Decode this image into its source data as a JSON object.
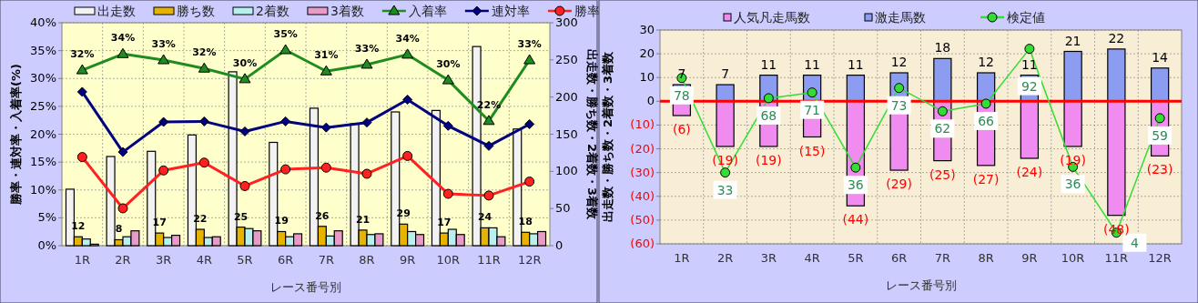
{
  "chart_data": [
    {
      "type": "bar",
      "xlabel": "レース番号別",
      "ylabel": "勝率・連対率・入着率(%)",
      "y2label": "出走数・勝ち数・2着数・3着数",
      "categories": [
        "1R",
        "2R",
        "3R",
        "4R",
        "5R",
        "6R",
        "7R",
        "8R",
        "9R",
        "10R",
        "11R",
        "12R"
      ],
      "ylim": [
        0,
        40
      ],
      "yticks": [
        {
          "value": 0,
          "label": "0%"
        },
        {
          "value": 5,
          "label": "5%"
        },
        {
          "value": 10,
          "label": "10%"
        },
        {
          "value": 15,
          "label": "15%"
        },
        {
          "value": 20,
          "label": "20%"
        },
        {
          "value": 25,
          "label": "25%"
        },
        {
          "value": 30,
          "label": "30%"
        },
        {
          "value": 35,
          "label": "35%"
        },
        {
          "value": 40,
          "label": "40%"
        }
      ],
      "y2lim": [
        0,
        300
      ],
      "y2ticks": [
        0,
        50,
        100,
        150,
        200,
        250,
        300
      ],
      "grid": true,
      "legend": "top",
      "series": [
        {
          "name": "出走数",
          "color": "#f2f2f2",
          "axis": "y2",
          "values": [
            76,
            120,
            127,
            149,
            234,
            139,
            185,
            164,
            180,
            182,
            268,
            157
          ]
        },
        {
          "name": "勝ち数",
          "color": "#e6b400",
          "axis": "y2",
          "values": [
            12,
            8,
            17,
            22,
            25,
            19,
            26,
            21,
            29,
            17,
            24,
            18
          ],
          "value_labels": [
            "12",
            "8",
            "17",
            "22",
            "25",
            "19",
            "26",
            "21",
            "29",
            "17",
            "24",
            "18"
          ]
        },
        {
          "name": "2着数",
          "color": "#b8f0f0",
          "axis": "y2",
          "values": [
            9,
            12,
            11,
            11,
            23,
            12,
            13,
            15,
            19,
            22,
            24,
            16
          ]
        },
        {
          "name": "3着数",
          "color": "#e89ac8",
          "axis": "y2",
          "values": [
            2,
            20,
            14,
            12,
            20,
            16,
            20,
            16,
            15,
            15,
            12,
            19
          ]
        },
        {
          "name": "入着率",
          "type": "line",
          "color": "#1e8c1e",
          "marker": "triangle",
          "values": [
            31.5,
            34.4,
            33.3,
            31.8,
            29.9,
            35.1,
            31.3,
            32.5,
            34.3,
            29.7,
            22.4,
            33.3
          ],
          "value_labels": [
            "32%",
            "34%",
            "33%",
            "32%",
            "30%",
            "35%",
            "31%",
            "33%",
            "34%",
            "30%",
            "22%",
            "33%"
          ]
        },
        {
          "name": "連対率",
          "type": "line",
          "color": "#000080",
          "marker": "diamond",
          "values": [
            27.6,
            16.8,
            22.2,
            22.3,
            20.5,
            22.3,
            21.2,
            22.1,
            26.2,
            21.5,
            17.9,
            21.8
          ]
        },
        {
          "name": "勝率",
          "type": "line",
          "color": "#ff2020",
          "marker": "circle",
          "values": [
            15.9,
            6.7,
            13.5,
            14.9,
            10.7,
            13.7,
            14.0,
            12.9,
            16.1,
            9.3,
            9.0,
            11.5
          ]
        }
      ]
    },
    {
      "type": "bar",
      "stacked": true,
      "xlabel": "レース番号別",
      "ylabel": "出走数・勝ち数・2着数・3着数",
      "categories": [
        "1R",
        "2R",
        "3R",
        "4R",
        "5R",
        "6R",
        "7R",
        "8R",
        "9R",
        "10R",
        "11R",
        "12R"
      ],
      "ylim": [
        -60,
        30
      ],
      "yticks": [
        {
          "value": -60,
          "label": "(60)"
        },
        {
          "value": -50,
          "label": "(50)"
        },
        {
          "value": -40,
          "label": "(40)"
        },
        {
          "value": -30,
          "label": "(30)"
        },
        {
          "value": -20,
          "label": "(20)"
        },
        {
          "value": -10,
          "label": "(10)"
        },
        0,
        10,
        20,
        30
      ],
      "grid": true,
      "legend": "top",
      "ref_lines": [
        {
          "axis": "y",
          "value": 0,
          "color": "#ff0000"
        }
      ],
      "series": [
        {
          "name": "人気凡走馬数",
          "color": "#f08cf0",
          "values": [
            -6,
            -19,
            -19,
            -15,
            -44,
            -29,
            -25,
            -27,
            -24,
            -19,
            -48,
            -23
          ],
          "value_labels": [
            "(6)",
            "(19)",
            "(19)",
            "(15)",
            "(44)",
            "(29)",
            "(25)",
            "(27)",
            "(24)",
            "(19)",
            "(48)",
            "(23)"
          ]
        },
        {
          "name": "激走馬数",
          "color": "#8c9cf0",
          "values": [
            7,
            7,
            11,
            11,
            11,
            12,
            18,
            12,
            11,
            21,
            22,
            14
          ],
          "value_labels": [
            "7",
            "7",
            "11",
            "11",
            "11",
            "12",
            "18",
            "12",
            "11",
            "21",
            "22",
            "14"
          ]
        },
        {
          "name": "検定値",
          "type": "line",
          "color": "#33dd33",
          "marker": "circle",
          "values": [
            9.8,
            -30,
            1.3,
            3.7,
            -27.9,
            5.6,
            -4.2,
            -1,
            22.1,
            -27.6,
            -55.3,
            -7.1
          ]
        }
      ],
      "annotations": [
        {
          "text": "78",
          "x": "1R",
          "y": 9.8
        },
        {
          "text": "33",
          "x": "2R",
          "y": -30
        },
        {
          "text": "68",
          "x": "3R",
          "y": 1.3
        },
        {
          "text": "71",
          "x": "4R",
          "y": 3.7
        },
        {
          "text": "36",
          "x": "5R",
          "y": -27.9
        },
        {
          "text": "73",
          "x": "6R",
          "y": 5.6
        },
        {
          "text": "62",
          "x": "7R",
          "y": -4.2
        },
        {
          "text": "66",
          "x": "8R",
          "y": -1
        },
        {
          "text": "92",
          "x": "9R",
          "y": 22.1
        },
        {
          "text": "36",
          "x": "10R",
          "y": -27.6
        },
        {
          "text": "4",
          "x": "11R",
          "y": -55.3
        },
        {
          "text": "59",
          "x": "12R",
          "y": -7.1
        }
      ]
    }
  ]
}
